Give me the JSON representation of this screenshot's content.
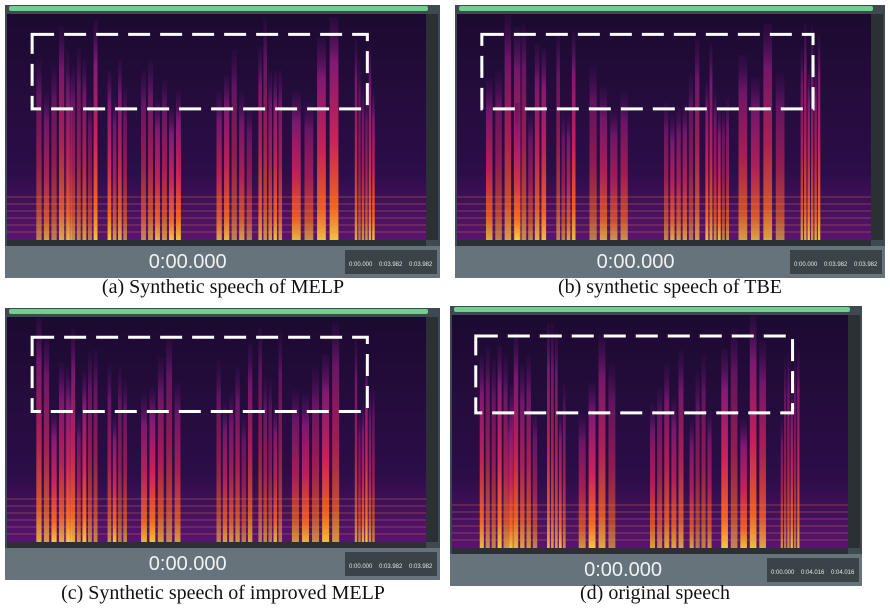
{
  "panels": [
    {
      "caption": "(a) Synthetic speech of MELP",
      "time": "0:00.000",
      "selection": [
        "0:00.000",
        "0:03.982",
        "0:03.982"
      ]
    },
    {
      "caption": "(b) synthetic speech of TBE",
      "time": "0:00.000",
      "selection": [
        "0:00.000",
        "0:03.982",
        "0:03.982"
      ]
    },
    {
      "caption": "(c) Synthetic speech of improved MELP",
      "time": "0:00.000",
      "selection": [
        "0:00.000",
        "0:03.982",
        "0:03.982"
      ]
    },
    {
      "caption": "(d) original speech",
      "time": "0:00.000",
      "selection": [
        "0:00.000",
        "0:04.016",
        "0:04.016"
      ]
    }
  ]
}
